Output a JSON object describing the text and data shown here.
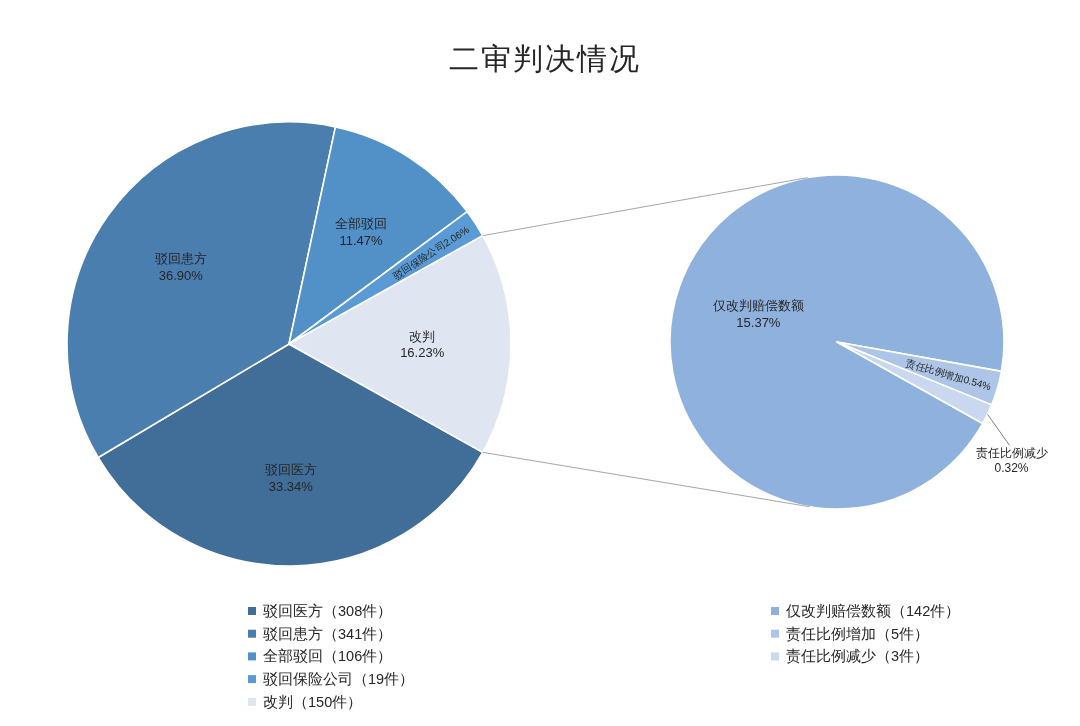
{
  "chart_data": [
    {
      "type": "pie",
      "title": "二审判决情况",
      "categories": [
        "驳回医方（308件）",
        "驳回患方（341件）",
        "全部驳回（106件）",
        "驳回保险公司（19件）",
        "改判（150件）"
      ],
      "values": [
        33.34,
        36.9,
        11.47,
        2.06,
        16.23
      ],
      "colors": [
        "#416e98",
        "#4a7eae",
        "#5290c8",
        "#5b9bd5",
        "#dfe6f2"
      ],
      "value_labels": [
        "驳回医方\n33.34%",
        "驳回患方\n36.90%",
        "全部驳回\n11.47%",
        "驳回保险公司2.06%",
        "改判\n16.23%"
      ],
      "legend": "bottom"
    },
    {
      "type": "pie",
      "categories": [
        "仅改判赔偿数额（142件）",
        "责任比例增加（5件）",
        "责任比例减少（3件）"
      ],
      "values": [
        15.37,
        0.54,
        0.32
      ],
      "colors": [
        "#8eb2dd",
        "#adc5e7",
        "#c9d8ef"
      ],
      "value_labels": [
        "仅改判赔偿数额\n15.37%",
        "责任比例增加0.54%",
        "责任比例减少\n0.32%"
      ],
      "legend": "bottom"
    }
  ]
}
